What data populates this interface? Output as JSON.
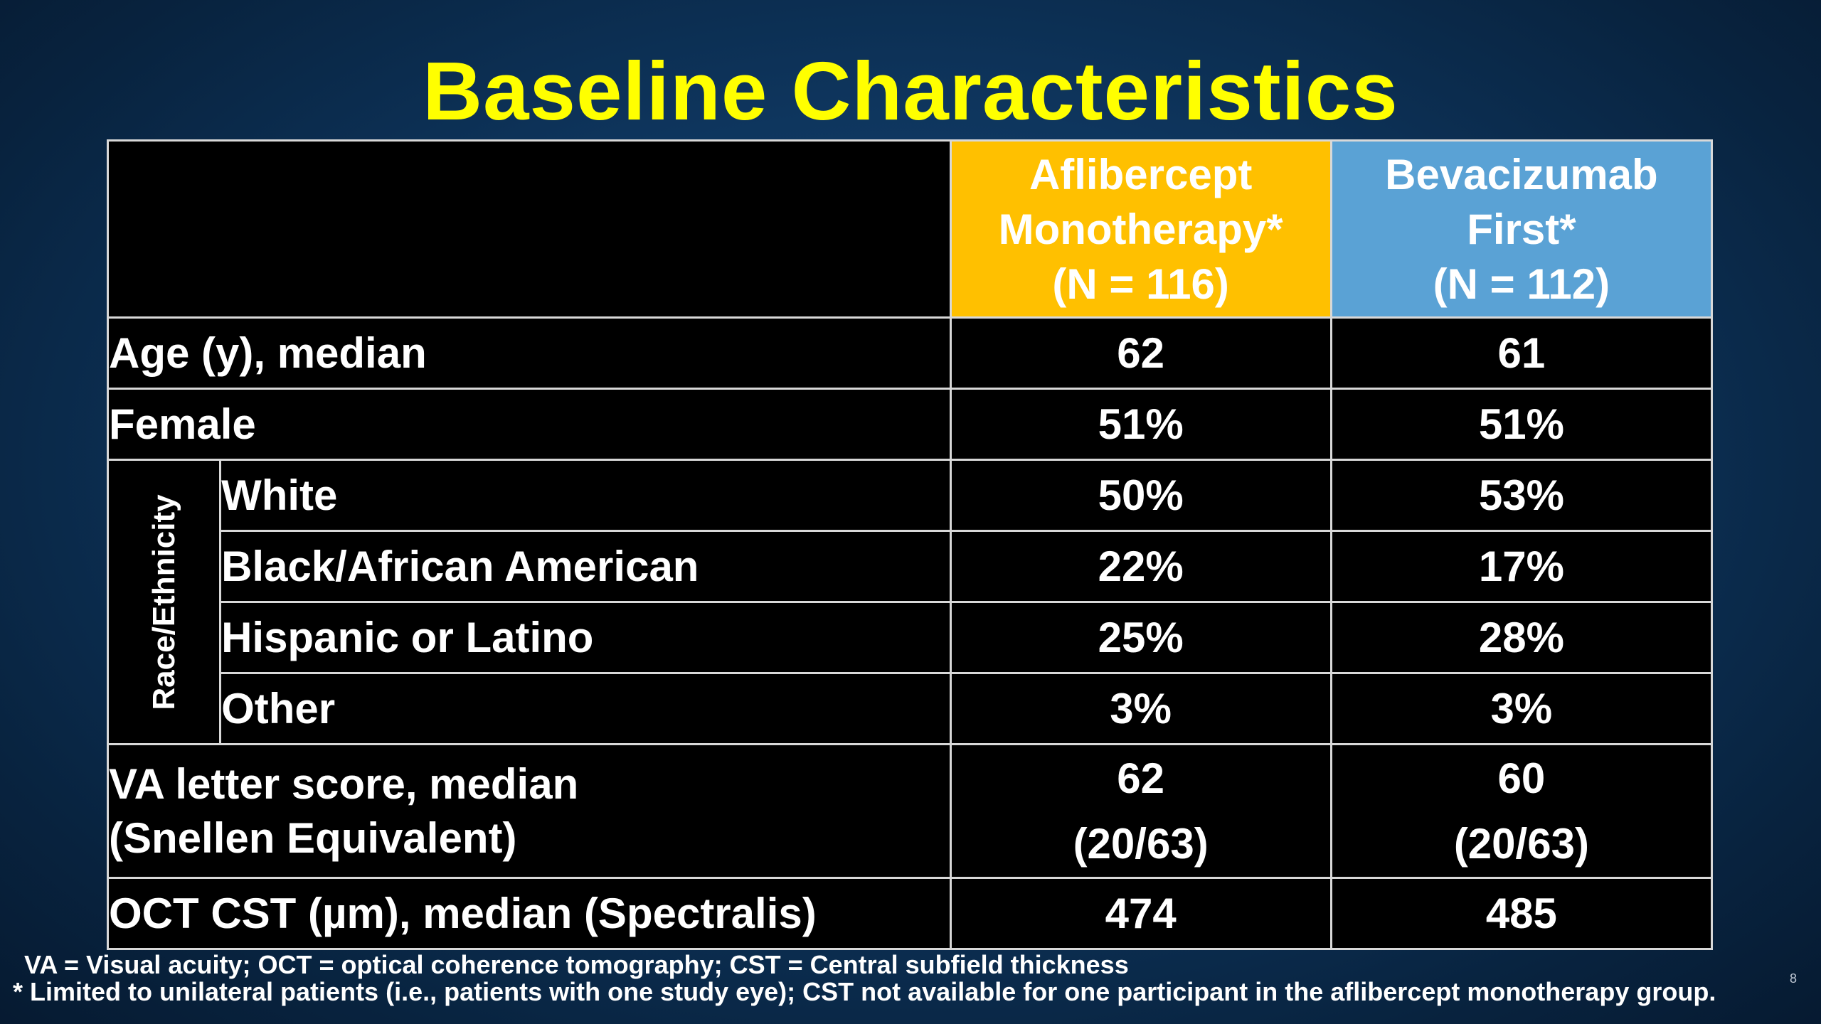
{
  "slide": {
    "title": "Baseline Characteristics",
    "page_number": "8"
  },
  "table": {
    "header": {
      "arm_a": {
        "line1": "Aflibercept",
        "line2": "Monotherapy*",
        "line3": "(N = 116)",
        "color": "#ffc000"
      },
      "arm_b": {
        "line1": "Bevacizumab",
        "line2": "First*",
        "line3": "(N = 112)",
        "color": "#5aa2d5"
      }
    },
    "rows": {
      "age": {
        "label": "Age (y), median",
        "a": "62",
        "b": "61"
      },
      "female": {
        "label": "Female",
        "a": "51%",
        "b": "51%"
      },
      "race_group_label": "Race/Ethnicity",
      "white": {
        "label": "White",
        "a": "50%",
        "b": "53%"
      },
      "black": {
        "label": "Black/African American",
        "a": "22%",
        "b": "17%"
      },
      "hispanic": {
        "label": "Hispanic or Latino",
        "a": "25%",
        "b": "28%"
      },
      "other": {
        "label": "Other",
        "a": "3%",
        "b": "3%"
      },
      "va": {
        "label_line1": "VA letter score, median",
        "label_line2": "(Snellen Equivalent)",
        "a_line1": "62",
        "a_line2": "(20/63)",
        "b_line1": "60",
        "b_line2": "(20/63)"
      },
      "oct": {
        "label": "OCT CST (µm), median (Spectralis)",
        "a": "474",
        "b": "485"
      }
    }
  },
  "footnotes": {
    "abbreviations": "VA = Visual acuity; OCT = optical coherence tomography; CST = Central subfield thickness",
    "asterisk": "* Limited to unilateral patients (i.e., patients with one study eye); CST not available for one participant in the aflibercept monotherapy group."
  },
  "colors": {
    "title": "#ffff00",
    "background": "#0e355d",
    "table_fill": "#000000"
  }
}
